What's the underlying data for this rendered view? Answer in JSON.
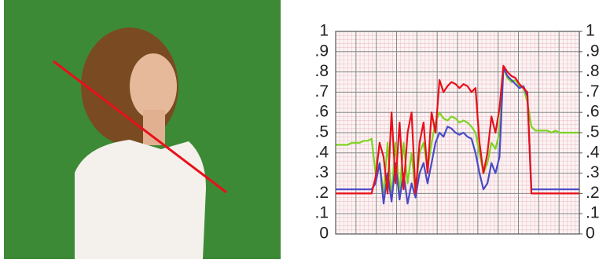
{
  "chart_data": {
    "type": "line",
    "ylim": [
      0,
      1
    ],
    "yticks": [
      0,
      {
        "value": 0.1,
        "label": ".1"
      },
      {
        "value": 0.2,
        "label": ".2"
      },
      {
        "value": 0.3,
        "label": ".3"
      },
      {
        "value": 0.4,
        "label": ".4"
      },
      {
        "value": 0.5,
        "label": ".5"
      },
      {
        "value": 0.6,
        "label": ".6"
      },
      {
        "value": 0.7,
        "label": ".7"
      },
      {
        "value": 0.8,
        "label": ".8"
      },
      {
        "value": 0.9,
        "label": ".9"
      },
      1
    ],
    "y2lim": [
      0,
      1
    ],
    "y2ticks": [
      0,
      {
        "value": 0.1,
        "label": ".1"
      },
      {
        "value": 0.2,
        "label": ".2"
      },
      {
        "value": 0.3,
        "label": ".3"
      },
      {
        "value": 0.4,
        "label": ".4"
      },
      {
        "value": 0.5,
        "label": ".5"
      },
      {
        "value": 0.6,
        "label": ".6"
      },
      {
        "value": 0.7,
        "label": ".7"
      },
      {
        "value": 0.8,
        "label": ".8"
      },
      {
        "value": 0.9,
        "label": ".9"
      },
      1
    ],
    "grid": true,
    "series": [
      {
        "color": "#7ed321",
        "values": [
          0.44,
          0.44,
          0.44,
          0.44,
          0.45,
          0.45,
          0.45,
          0.46,
          0.46,
          0.47,
          0.3,
          0.35,
          0.2,
          0.45,
          0.18,
          0.45,
          0.2,
          0.45,
          0.25,
          0.4,
          0.2,
          0.4,
          0.45,
          0.32,
          0.45,
          0.55,
          0.6,
          0.57,
          0.56,
          0.58,
          0.57,
          0.55,
          0.56,
          0.55,
          0.53,
          0.5,
          0.4,
          0.3,
          0.35,
          0.45,
          0.42,
          0.5,
          0.82,
          0.77,
          0.75,
          0.76,
          0.73,
          0.72,
          0.65,
          0.53,
          0.51,
          0.51,
          0.51,
          0.51,
          0.5,
          0.51,
          0.5,
          0.5,
          0.5,
          0.5,
          0.5,
          0.5
        ]
      },
      {
        "color": "#4a4ac8",
        "values": [
          0.22,
          0.22,
          0.22,
          0.22,
          0.22,
          0.22,
          0.22,
          0.22,
          0.22,
          0.22,
          0.25,
          0.35,
          0.15,
          0.3,
          0.16,
          0.35,
          0.17,
          0.3,
          0.15,
          0.25,
          0.18,
          0.3,
          0.35,
          0.25,
          0.35,
          0.45,
          0.5,
          0.48,
          0.53,
          0.52,
          0.5,
          0.49,
          0.5,
          0.48,
          0.47,
          0.4,
          0.3,
          0.22,
          0.25,
          0.35,
          0.3,
          0.38,
          0.82,
          0.78,
          0.76,
          0.74,
          0.72,
          0.73,
          0.68,
          0.22,
          0.22,
          0.22,
          0.22,
          0.22,
          0.22,
          0.22,
          0.22,
          0.22,
          0.22,
          0.22,
          0.22,
          0.22
        ]
      },
      {
        "color": "#e8101a",
        "values": [
          0.2,
          0.2,
          0.2,
          0.2,
          0.2,
          0.2,
          0.2,
          0.2,
          0.2,
          0.2,
          0.28,
          0.45,
          0.38,
          0.2,
          0.6,
          0.25,
          0.55,
          0.22,
          0.5,
          0.6,
          0.2,
          0.45,
          0.55,
          0.3,
          0.6,
          0.5,
          0.76,
          0.7,
          0.73,
          0.75,
          0.74,
          0.72,
          0.74,
          0.73,
          0.7,
          0.72,
          0.45,
          0.3,
          0.4,
          0.58,
          0.5,
          0.62,
          0.83,
          0.8,
          0.78,
          0.77,
          0.74,
          0.72,
          0.7,
          0.2,
          0.2,
          0.2,
          0.2,
          0.2,
          0.2,
          0.2,
          0.2,
          0.2,
          0.2,
          0.2,
          0.2,
          0.2
        ]
      }
    ]
  }
}
